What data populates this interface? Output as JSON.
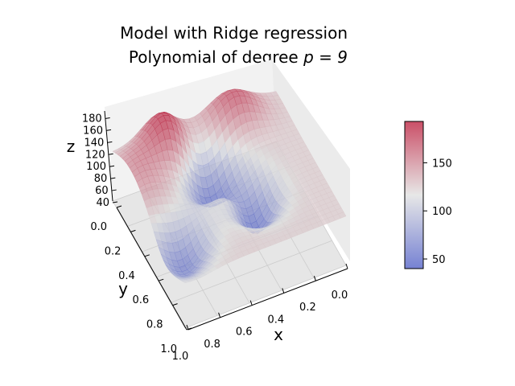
{
  "chart_data": {
    "type": "surface-3d",
    "title_lines": [
      "Model with Ridge regression",
      "Polynomial of degree "
    ],
    "title_math": "p = 9",
    "xlabel": "x",
    "ylabel": "y",
    "zlabel": "z",
    "x_ticks": [
      "0.0",
      "0.2",
      "0.4",
      "0.6",
      "0.8",
      "1.0"
    ],
    "y_ticks": [
      "0.0",
      "0.2",
      "0.4",
      "0.6",
      "0.8",
      "1.0"
    ],
    "z_ticks": [
      "40",
      "60",
      "80",
      "100",
      "120",
      "140",
      "160",
      "180"
    ],
    "xlim": [
      0,
      1
    ],
    "ylim": [
      0,
      1
    ],
    "zlim": [
      40,
      190
    ],
    "colormap": "coolwarm",
    "colorbar": {
      "ticks": [
        "50",
        "100",
        "150"
      ],
      "range": [
        40,
        193
      ]
    },
    "grid": true,
    "colors": {
      "cold": "#3b4cc0",
      "neutral": "#dddddd",
      "warm": "#b40426",
      "pane": "#f2f2f2",
      "grid": "#cccccc"
    }
  }
}
